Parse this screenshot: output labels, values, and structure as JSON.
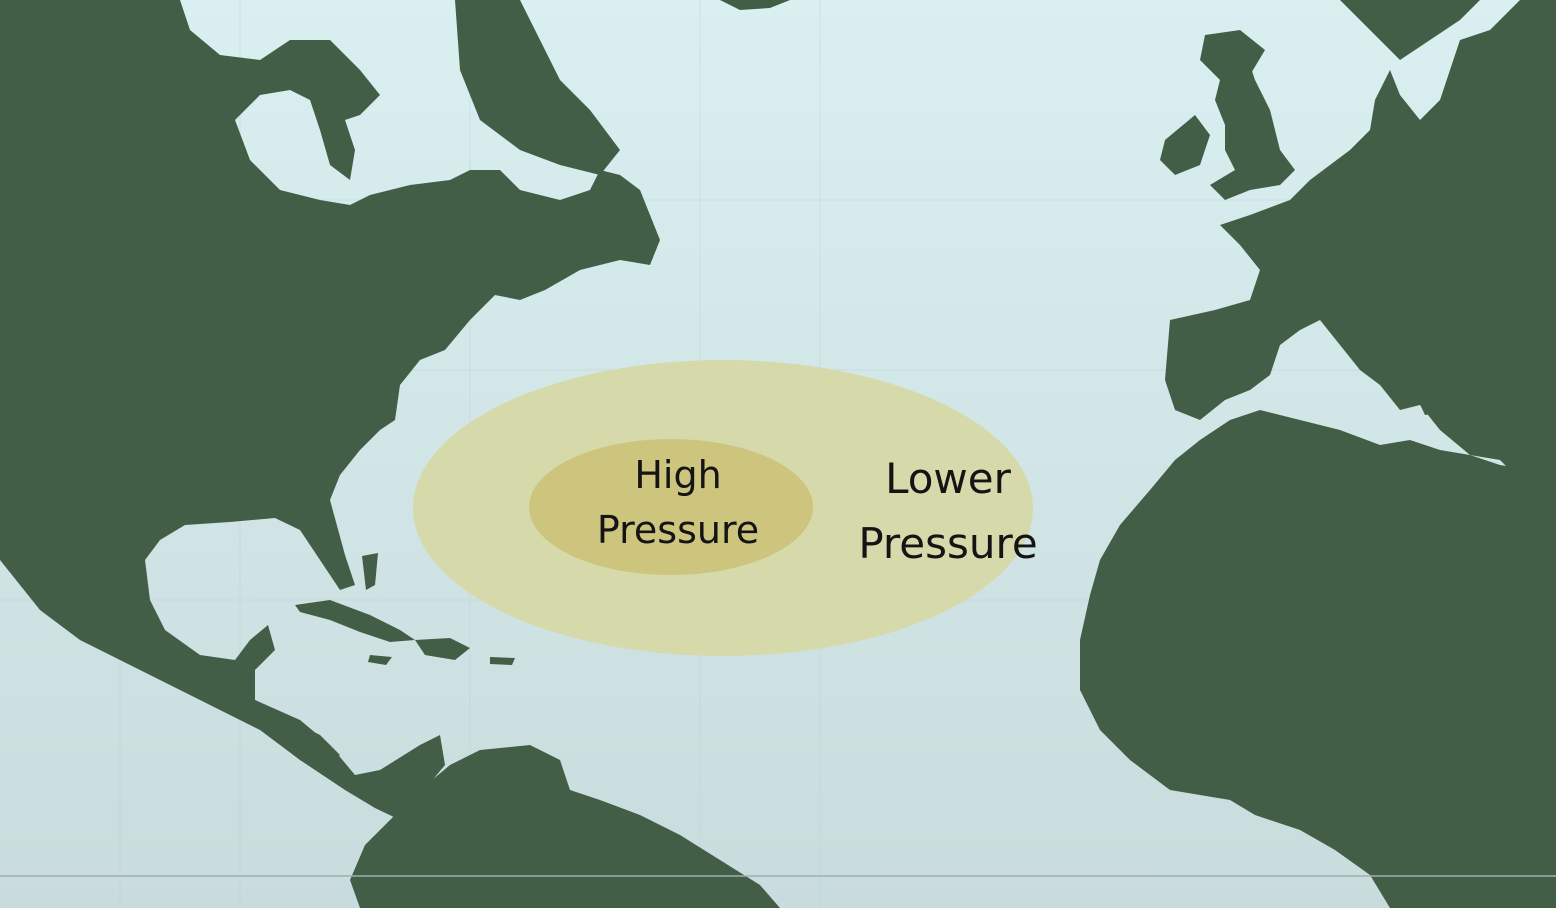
{
  "map": {
    "colors": {
      "ocean_top": "#d9eff0",
      "ocean_bottom": "#c9dcdd",
      "land": "#425e47",
      "outer_zone": "#d6d9a9",
      "inner_zone": "#cdc57d",
      "label_text": "#141414"
    },
    "zones": {
      "high": {
        "line1": "High",
        "line2": "Pressure"
      },
      "low": {
        "line1": "Lower",
        "line2": "Pressure"
      }
    }
  }
}
